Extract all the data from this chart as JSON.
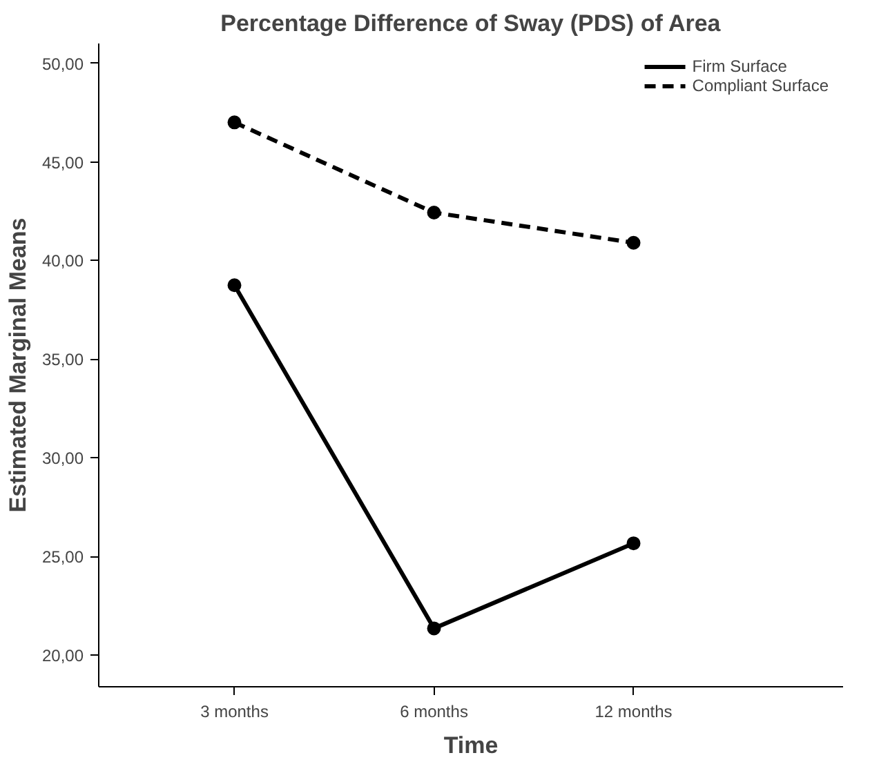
{
  "chart_data": {
    "type": "line",
    "title": "Percentage Difference of Sway (PDS) of Area",
    "xlabel": "Time",
    "ylabel": "Estimated Marginal Means",
    "categories": [
      "3 months",
      "6 months",
      "12 months"
    ],
    "series": [
      {
        "name": "Firm Surface",
        "color": "#000000",
        "line_style": "solid",
        "values": [
          38.75,
          21.36,
          25.67
        ]
      },
      {
        "name": "Compliant Surface",
        "color": "#000000",
        "line_style": "dashed",
        "values": [
          47.0,
          42.43,
          40.9
        ]
      }
    ],
    "ylim": [
      18.4,
      51
    ],
    "yticks": [
      {
        "value": 20,
        "label": "20,00"
      },
      {
        "value": 25,
        "label": "25,00"
      },
      {
        "value": 30,
        "label": "30,00"
      },
      {
        "value": 35,
        "label": "35,00"
      },
      {
        "value": 40,
        "label": "40,00"
      },
      {
        "value": 45,
        "label": "45,00"
      },
      {
        "value": 50,
        "label": "50,00"
      }
    ],
    "marker": "circle",
    "grid": false,
    "legend": "top right"
  }
}
